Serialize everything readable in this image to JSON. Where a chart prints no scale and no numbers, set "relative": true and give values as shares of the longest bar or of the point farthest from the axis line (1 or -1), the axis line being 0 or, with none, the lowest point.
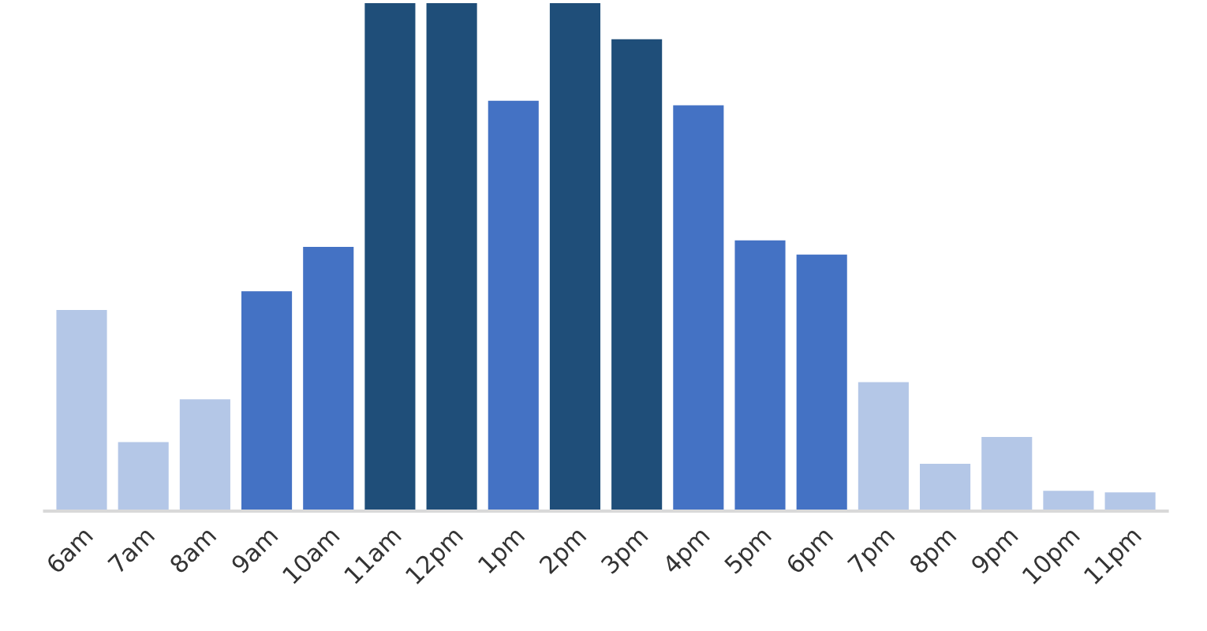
{
  "chart_data": {
    "type": "bar",
    "relative": true,
    "categories": [
      "6am",
      "7am",
      "8am",
      "9am",
      "10am",
      "11am",
      "12pm",
      "1pm",
      "2pm",
      "3pm",
      "4pm",
      "5pm",
      "6pm",
      "7pm",
      "8pm",
      "9pm",
      "10pm",
      "11pm"
    ],
    "values": [
      0.396,
      0.136,
      0.22,
      0.433,
      0.52,
      1,
      1,
      0.808,
      1,
      0.929,
      0.799,
      0.533,
      0.505,
      0.254,
      0.093,
      0.146,
      0.04,
      0.037
    ],
    "colors": [
      "#b4c7e7",
      "#b4c7e7",
      "#b4c7e7",
      "#4472c4",
      "#4472c4",
      "#1f4e79",
      "#1f4e79",
      "#4472c4",
      "#1f4e79",
      "#1f4e79",
      "#4472c4",
      "#4472c4",
      "#4472c4",
      "#b4c7e7",
      "#b4c7e7",
      "#b4c7e7",
      "#b4c7e7",
      "#b4c7e7"
    ],
    "grid": false
  }
}
